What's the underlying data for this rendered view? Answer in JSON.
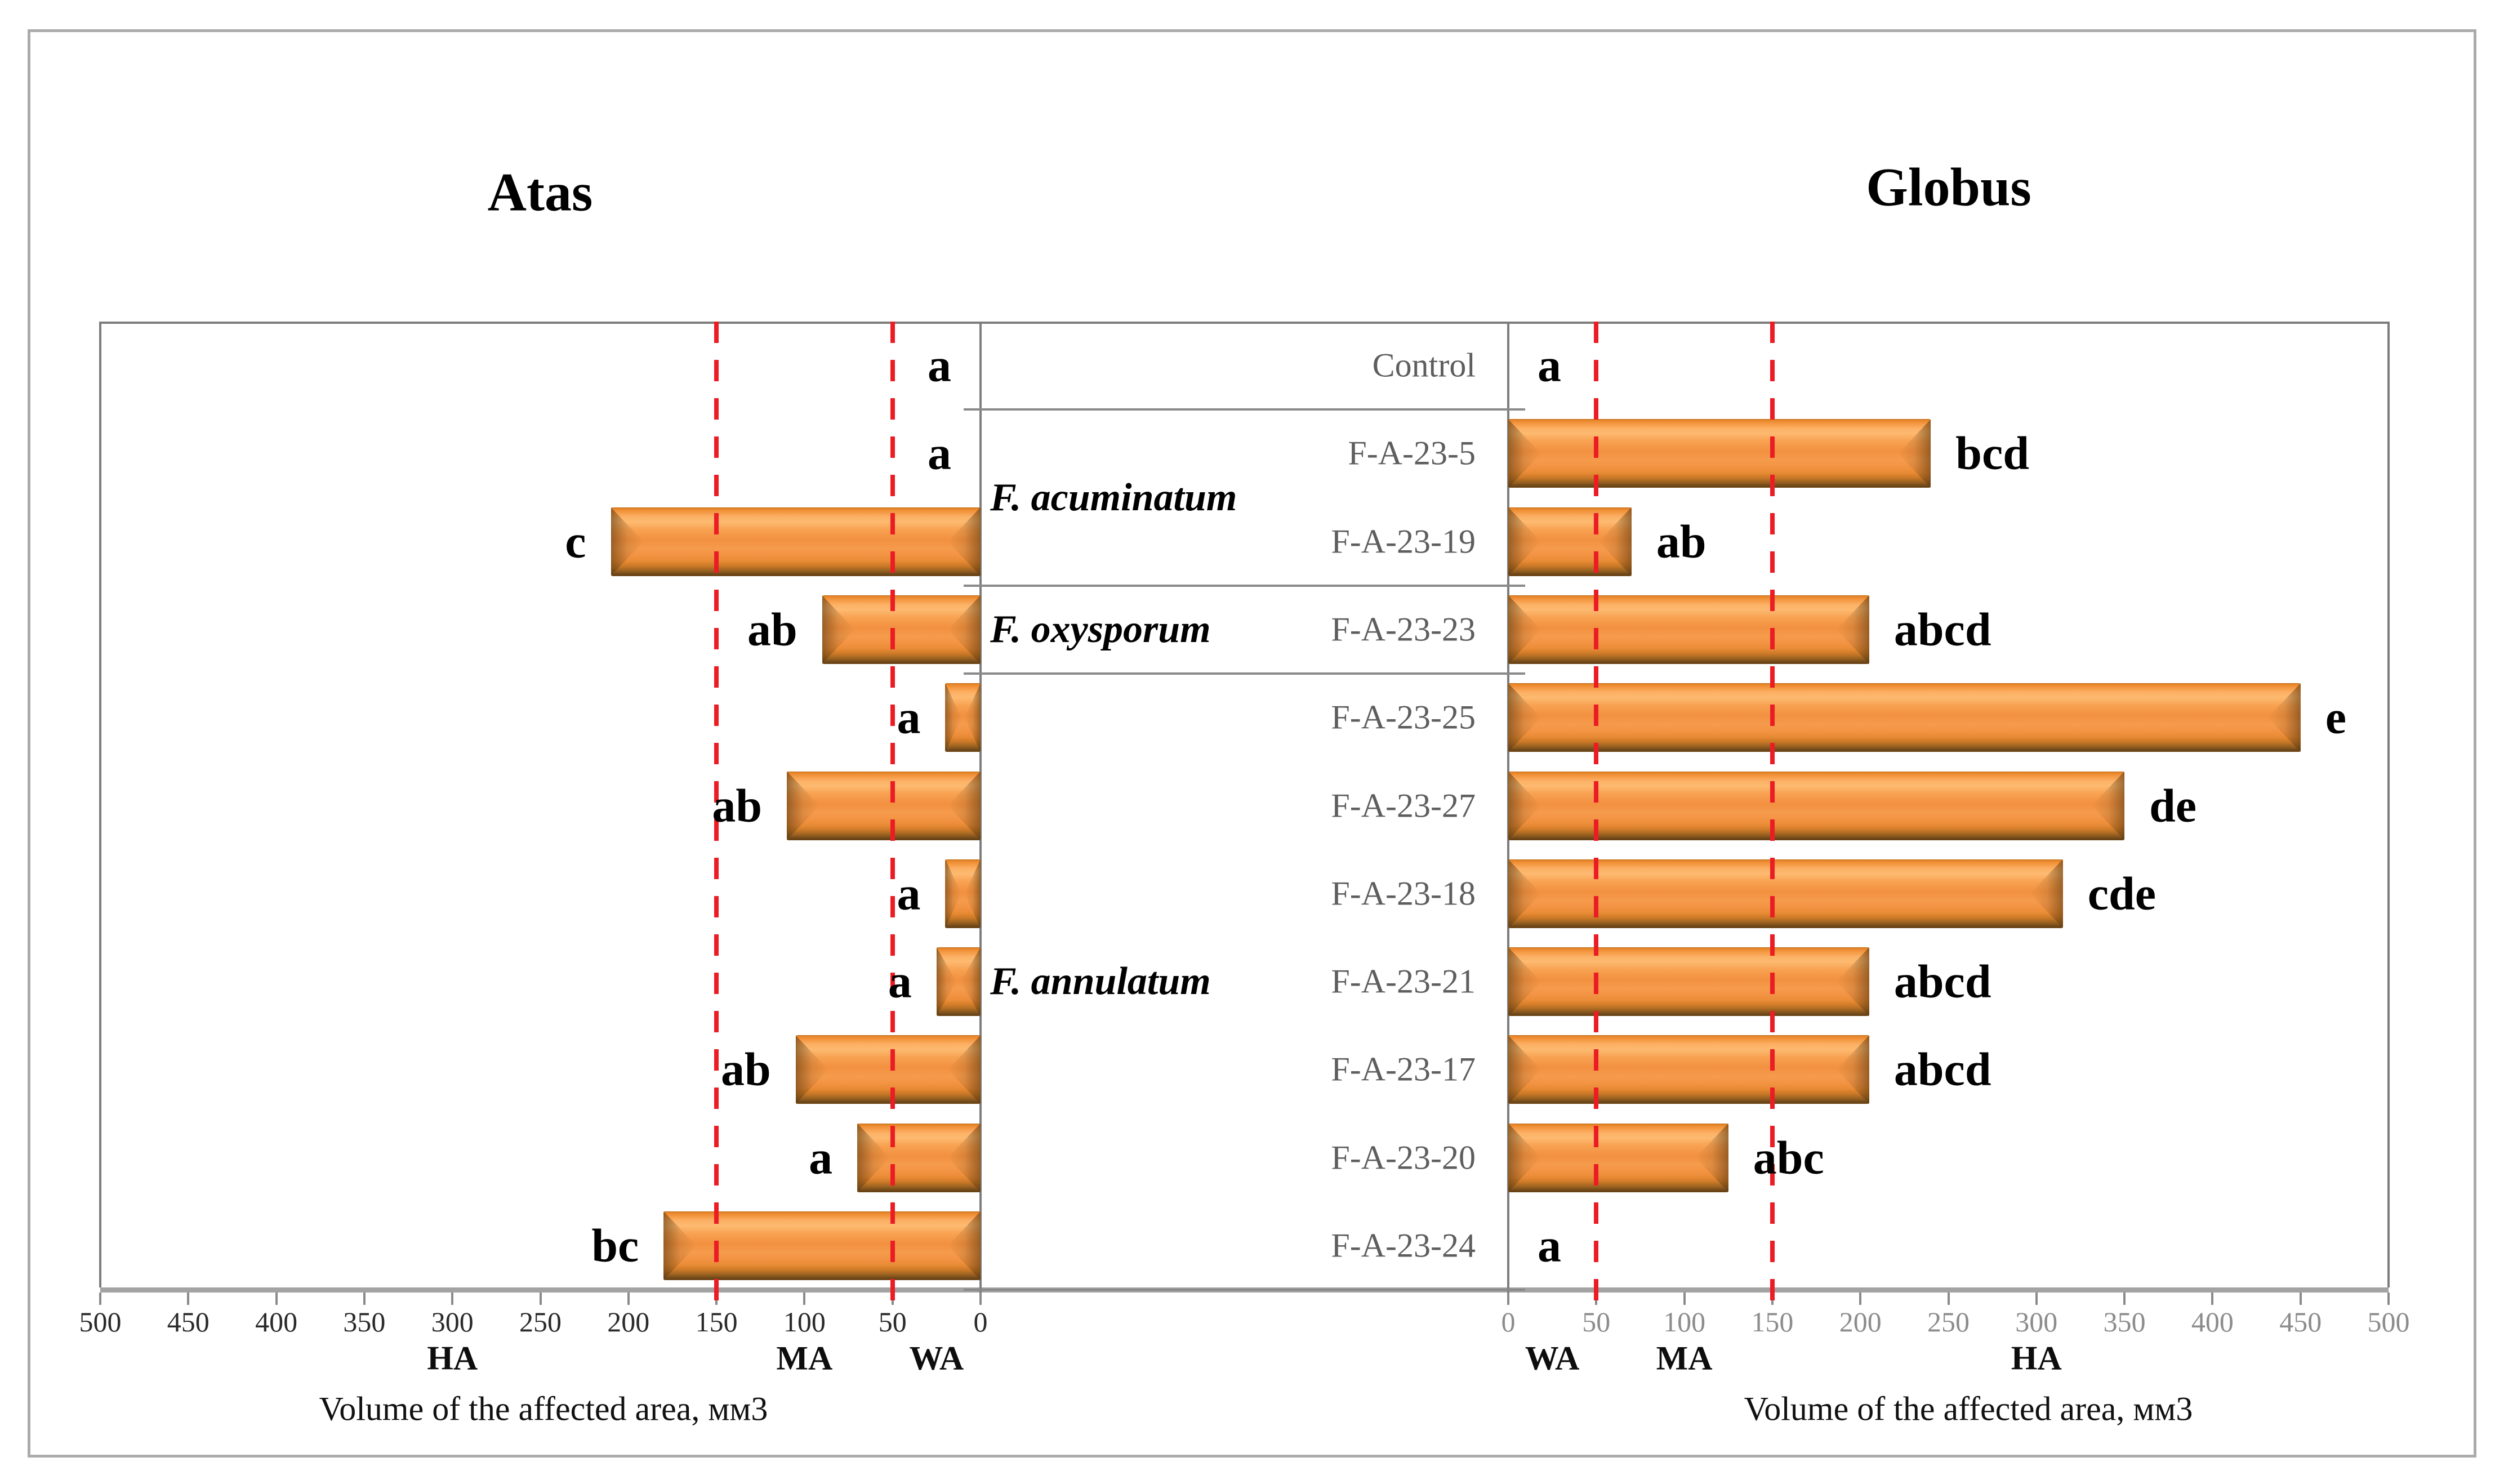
{
  "figure": {
    "panels": [
      {
        "title": "Atas",
        "side": "left",
        "axis_title": "Volume of the affected area, мм3"
      },
      {
        "title": "Globus",
        "side": "right",
        "axis_title": "Volume of the affected area, мм3"
      }
    ]
  },
  "chart_data": {
    "type": "bar",
    "layout": "horizontal back-to-back (tornado) chart, two panels sharing a center category column",
    "title_left": "Atas",
    "title_right": "Globus",
    "xlabel": "Volume of the affected area, мм3",
    "categories": [
      "Control",
      "F-A-23-5",
      "F-A-23-19",
      "F-A-23-23",
      "F-A-23-25",
      "F-A-23-27",
      "F-A-23-18",
      "F-A-23-21",
      "F-A-23-17",
      "F-A-23-20",
      "F-A-23-24"
    ],
    "species_groups": [
      {
        "name": "F. acuminatum",
        "first_row": 1,
        "last_row": 2
      },
      {
        "name": "F. oxysporum",
        "first_row": 3,
        "last_row": 3
      },
      {
        "name": "F. annulatum",
        "first_row": 4,
        "last_row": 10
      }
    ],
    "series": [
      {
        "name": "Atas",
        "values": [
          0,
          0,
          210,
          90,
          20,
          110,
          20,
          25,
          105,
          70,
          180
        ],
        "letters": [
          "a",
          "a",
          "c",
          "ab",
          "a",
          "ab",
          "a",
          "a",
          "ab",
          "a",
          "bc"
        ]
      },
      {
        "name": "Globus",
        "values": [
          0,
          240,
          70,
          205,
          450,
          350,
          315,
          205,
          205,
          125,
          0
        ],
        "letters": [
          "a",
          "bcd",
          "ab",
          "abcd",
          "e",
          "de",
          "cde",
          "abcd",
          "abcd",
          "abc",
          "a"
        ]
      }
    ],
    "xlim": [
      0,
      500
    ],
    "axis_ticks": [
      0,
      50,
      100,
      150,
      200,
      250,
      300,
      350,
      400,
      450,
      500
    ],
    "reference_lines": [
      50,
      150
    ],
    "zone_labels": [
      {
        "label": "WA",
        "at": 25
      },
      {
        "label": "MA",
        "at": 100
      },
      {
        "label": "HA",
        "at": 300
      }
    ],
    "grid": "off",
    "legend": "none",
    "bar_color": "#F0913C",
    "bar_shadow_color": "#6B4514",
    "reference_line_color": "#EC1C24",
    "left_tick_label_color": "#2A2A2A",
    "right_tick_label_color": "#8C8C8C",
    "category_label_color": "#5E5E5E"
  }
}
